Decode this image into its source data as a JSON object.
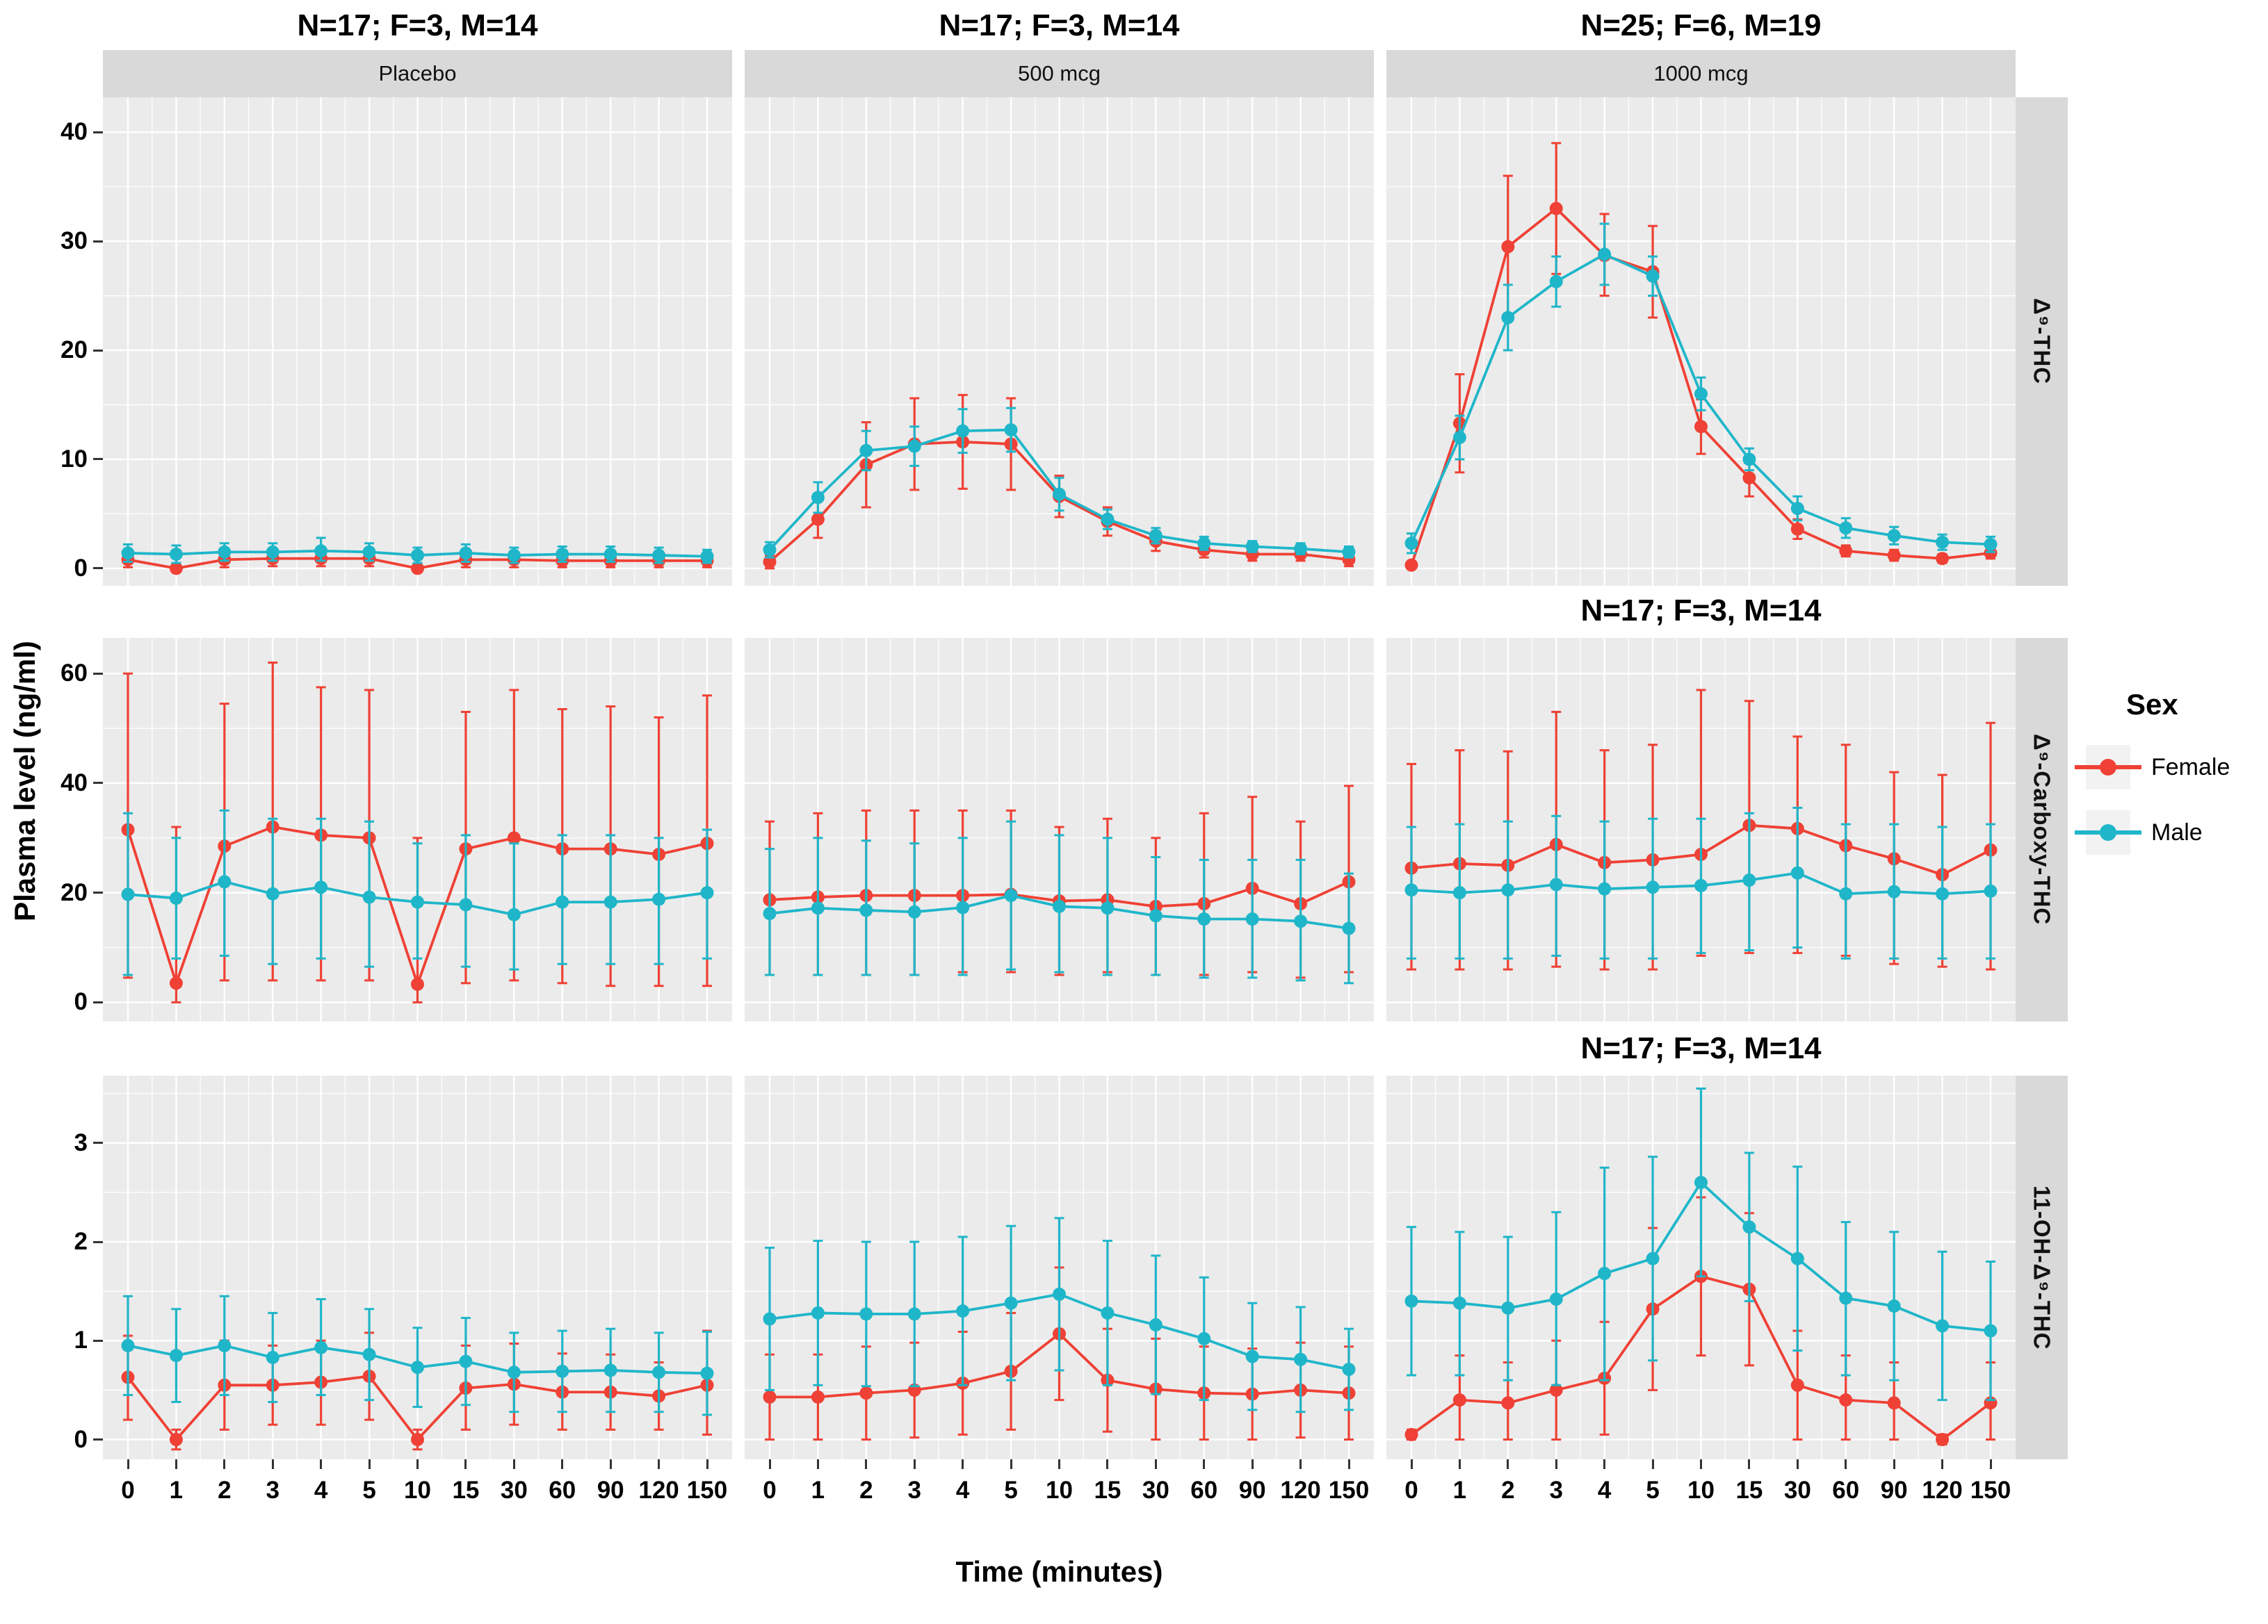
{
  "figure": {
    "x_axis_title": "Time (minutes)",
    "y_axis_title": "Plasma level (ng/ml)",
    "panel_bg": "#EBEBEB",
    "grid_color": "#FFFFFF",
    "strip_bg": "#D9D9D9"
  },
  "chart_data": {
    "type": "line",
    "x_categories": [
      "0",
      "1",
      "2",
      "3",
      "4",
      "5",
      "10",
      "15",
      "30",
      "60",
      "90",
      "120",
      "150"
    ],
    "x_values": [
      0,
      1,
      2,
      3,
      4,
      5,
      10,
      15,
      30,
      60,
      90,
      120,
      150
    ],
    "xlabel": "Time (minutes)",
    "ylabel": "Plasma level (ng/ml)",
    "grid": "white major and minor gridlines on gray panels",
    "legend": {
      "title": "Sex",
      "position": "right",
      "entries": [
        {
          "label": "Female",
          "color": "#EF4135"
        },
        {
          "label": "Male",
          "color": "#1FB6C9"
        }
      ]
    },
    "columns": [
      {
        "id": "placebo",
        "title": "N=17; F=3, M=14",
        "strip": "Placebo"
      },
      {
        "id": "500mcg",
        "title": "N=17; F=3, M=14",
        "strip": "500 mcg"
      },
      {
        "id": "1000mcg",
        "title": "N=25; F=6, M=19",
        "strip": "1000 mcg"
      }
    ],
    "rows": [
      {
        "id": "d9-thc",
        "strip": "Δ⁹-THC",
        "yticks": [
          0,
          10,
          20,
          30,
          40
        ],
        "minor": [
          5,
          15,
          25,
          35
        ],
        "ylim": [
          -1.6,
          43.2
        ]
      },
      {
        "id": "d9-carboxy-thc",
        "strip": "Δ⁹-Carboxy-THC",
        "yticks": [
          0,
          20,
          40,
          60
        ],
        "minor": [
          10,
          30,
          50
        ],
        "ylim": [
          -3.5,
          66.5
        ]
      },
      {
        "id": "11-oh-d9-thc",
        "strip": "11-OH-Δ⁹-THC",
        "yticks": [
          0,
          1,
          2,
          3
        ],
        "minor": [
          0.5,
          1.5,
          2.5,
          3.5
        ],
        "ylim": [
          -0.2,
          3.68
        ]
      }
    ],
    "mid_titles": [
      {
        "above_row": 1,
        "col": 2,
        "text": "N=17; F=3, M=14"
      },
      {
        "above_row": 2,
        "col": 2,
        "text": "N=17; F=3, M=14"
      }
    ],
    "panels": [
      {
        "name": "placebo-d9-thc",
        "row": 0,
        "col": 0,
        "series": {
          "female": {
            "values": [
              0.8,
              0.0,
              0.8,
              0.9,
              0.9,
              0.9,
              0.0,
              0.8,
              0.8,
              0.7,
              0.7,
              0.7,
              0.7
            ],
            "lo": [
              0.1,
              -0.2,
              0.1,
              0.2,
              0.2,
              0.2,
              -0.2,
              0.1,
              0.1,
              0.1,
              0.1,
              0.1,
              0.1
            ],
            "hi": [
              1.5,
              0.2,
              1.5,
              1.6,
              1.6,
              1.6,
              0.2,
              1.5,
              1.5,
              1.3,
              1.3,
              1.3,
              1.3
            ]
          },
          "male": {
            "values": [
              1.4,
              1.3,
              1.5,
              1.5,
              1.6,
              1.5,
              1.2,
              1.4,
              1.2,
              1.3,
              1.3,
              1.2,
              1.1
            ],
            "lo": [
              0.6,
              0.5,
              0.7,
              0.7,
              0.7,
              0.7,
              0.5,
              0.6,
              0.5,
              0.6,
              0.6,
              0.5,
              0.5
            ],
            "hi": [
              2.2,
              2.1,
              2.3,
              2.3,
              2.8,
              2.3,
              1.9,
              2.2,
              1.9,
              2.0,
              2.0,
              1.9,
              1.7
            ]
          }
        }
      },
      {
        "name": "500mcg-d9-thc",
        "row": 0,
        "col": 1,
        "series": {
          "female": {
            "values": [
              0.6,
              4.5,
              9.5,
              11.4,
              11.6,
              11.4,
              6.6,
              4.3,
              2.5,
              1.7,
              1.3,
              1.3,
              0.8
            ],
            "lo": [
              0.0,
              2.8,
              5.6,
              7.2,
              7.3,
              7.2,
              4.7,
              3.0,
              1.6,
              1.0,
              0.7,
              0.7,
              0.2
            ],
            "hi": [
              1.2,
              6.2,
              13.4,
              15.6,
              15.9,
              15.6,
              8.5,
              5.6,
              3.4,
              2.4,
              1.9,
              1.9,
              1.4
            ]
          },
          "male": {
            "values": [
              1.7,
              6.5,
              10.8,
              11.2,
              12.6,
              12.7,
              6.8,
              4.5,
              3.0,
              2.3,
              2.0,
              1.8,
              1.5
            ],
            "lo": [
              1.0,
              5.1,
              9.0,
              9.4,
              10.6,
              10.7,
              5.3,
              3.6,
              2.3,
              1.7,
              1.5,
              1.3,
              1.0
            ],
            "hi": [
              2.4,
              7.9,
              12.6,
              13.0,
              14.6,
              14.7,
              8.3,
              5.4,
              3.7,
              2.9,
              2.5,
              2.3,
              2.0
            ]
          }
        }
      },
      {
        "name": "1000mcg-d9-thc",
        "row": 0,
        "col": 2,
        "series": {
          "female": {
            "values": [
              0.3,
              13.3,
              29.5,
              33.0,
              28.7,
              27.2,
              13.0,
              8.3,
              3.6,
              1.6,
              1.2,
              0.9,
              1.4
            ],
            "lo": [
              0.0,
              8.8,
              23.0,
              27.0,
              25.0,
              23.0,
              10.5,
              6.6,
              2.7,
              1.1,
              0.7,
              0.5,
              0.9
            ],
            "hi": [
              0.6,
              17.8,
              36.0,
              39.0,
              32.5,
              31.4,
              15.5,
              10.0,
              4.5,
              2.1,
              1.7,
              1.3,
              1.9
            ]
          },
          "male": {
            "values": [
              2.3,
              12.0,
              23.0,
              26.3,
              28.8,
              26.8,
              16.0,
              10.0,
              5.5,
              3.7,
              3.0,
              2.4,
              2.2
            ],
            "lo": [
              1.4,
              10.0,
              20.0,
              24.0,
              26.0,
              25.0,
              14.5,
              9.0,
              4.4,
              2.8,
              2.2,
              1.7,
              1.5
            ],
            "hi": [
              3.2,
              14.0,
              26.0,
              28.6,
              31.6,
              28.6,
              17.5,
              11.0,
              6.6,
              4.6,
              3.8,
              3.1,
              2.9
            ]
          }
        }
      },
      {
        "name": "placebo-d9-carboxy-thc",
        "row": 1,
        "col": 0,
        "series": {
          "female": {
            "values": [
              31.5,
              3.5,
              28.5,
              32.0,
              30.5,
              30.0,
              3.3,
              28.0,
              30.0,
              28.0,
              28.0,
              27.0,
              29.0
            ],
            "lo": [
              4.5,
              0.0,
              4.0,
              4.0,
              4.0,
              4.0,
              0.0,
              3.5,
              4.0,
              3.5,
              3.0,
              3.0,
              3.0
            ],
            "hi": [
              60.0,
              32.0,
              54.5,
              62.0,
              57.5,
              57.0,
              30.0,
              53.0,
              57.0,
              53.5,
              54.0,
              52.0,
              56.0
            ]
          },
          "male": {
            "values": [
              19.7,
              19.0,
              22.0,
              19.8,
              21.0,
              19.2,
              18.3,
              17.8,
              16.0,
              18.3,
              18.3,
              18.8,
              20.0
            ],
            "lo": [
              5.0,
              8.0,
              8.5,
              7.0,
              8.0,
              6.5,
              8.0,
              6.5,
              6.0,
              7.0,
              7.0,
              7.0,
              8.0
            ],
            "hi": [
              34.5,
              30.0,
              35.0,
              33.5,
              33.5,
              33.0,
              29.0,
              30.5,
              29.0,
              30.5,
              30.5,
              30.0,
              31.5
            ]
          }
        }
      },
      {
        "name": "500mcg-d9-carboxy-thc",
        "row": 1,
        "col": 1,
        "series": {
          "female": {
            "values": [
              18.7,
              19.2,
              19.5,
              19.5,
              19.5,
              19.7,
              18.5,
              18.7,
              17.5,
              18.0,
              20.8,
              18.0,
              22.0
            ],
            "lo": [
              5.0,
              5.0,
              5.0,
              5.0,
              5.5,
              5.5,
              5.0,
              5.5,
              5.0,
              5.0,
              5.5,
              4.5,
              5.5
            ],
            "hi": [
              33.0,
              34.5,
              35.0,
              35.0,
              35.0,
              35.0,
              32.0,
              33.5,
              30.0,
              34.5,
              37.5,
              33.0,
              39.5
            ]
          },
          "male": {
            "values": [
              16.2,
              17.2,
              16.8,
              16.5,
              17.3,
              19.5,
              17.5,
              17.2,
              15.8,
              15.2,
              15.2,
              14.8,
              13.5
            ],
            "lo": [
              5.0,
              5.0,
              5.0,
              5.0,
              5.0,
              6.0,
              5.5,
              5.0,
              5.0,
              4.5,
              4.5,
              4.0,
              3.5
            ],
            "hi": [
              28.0,
              30.0,
              29.5,
              29.0,
              30.0,
              33.0,
              30.5,
              30.0,
              26.5,
              26.0,
              26.0,
              26.0,
              23.5
            ]
          }
        }
      },
      {
        "name": "1000mcg-d9-carboxy-thc",
        "row": 1,
        "col": 2,
        "series": {
          "female": {
            "values": [
              24.5,
              25.3,
              25.0,
              28.8,
              25.5,
              26.0,
              27.0,
              32.3,
              31.7,
              28.6,
              26.2,
              23.3,
              27.8
            ],
            "lo": [
              6.0,
              6.0,
              6.0,
              6.5,
              6.0,
              6.0,
              8.5,
              9.0,
              9.0,
              8.5,
              7.0,
              6.5,
              6.0
            ],
            "hi": [
              43.5,
              46.0,
              45.8,
              53.0,
              46.0,
              47.0,
              57.0,
              55.0,
              48.5,
              47.0,
              42.0,
              41.5,
              51.0
            ]
          },
          "male": {
            "values": [
              20.5,
              20.0,
              20.5,
              21.5,
              20.7,
              21.0,
              21.3,
              22.3,
              23.6,
              19.8,
              20.2,
              19.8,
              20.3
            ],
            "lo": [
              8.0,
              8.0,
              8.0,
              8.5,
              8.0,
              8.0,
              9.0,
              9.5,
              10.0,
              8.0,
              8.0,
              8.0,
              8.0
            ],
            "hi": [
              32.0,
              32.5,
              33.0,
              34.0,
              33.0,
              33.5,
              33.5,
              34.5,
              35.5,
              32.5,
              32.5,
              32.0,
              32.5
            ]
          }
        }
      },
      {
        "name": "placebo-11-oh-d9-thc",
        "row": 2,
        "col": 0,
        "series": {
          "female": {
            "values": [
              0.63,
              0.0,
              0.55,
              0.55,
              0.58,
              0.64,
              0.0,
              0.52,
              0.56,
              0.48,
              0.48,
              0.44,
              0.55
            ],
            "lo": [
              0.2,
              -0.1,
              0.1,
              0.15,
              0.15,
              0.2,
              -0.1,
              0.1,
              0.15,
              0.1,
              0.1,
              0.1,
              0.05
            ],
            "hi": [
              1.05,
              0.1,
              1.0,
              0.95,
              1.0,
              1.08,
              0.1,
              0.95,
              0.97,
              0.87,
              0.86,
              0.78,
              1.1
            ]
          },
          "male": {
            "values": [
              0.95,
              0.85,
              0.95,
              0.83,
              0.93,
              0.86,
              0.73,
              0.79,
              0.68,
              0.69,
              0.7,
              0.68,
              0.67
            ],
            "lo": [
              0.45,
              0.38,
              0.45,
              0.38,
              0.45,
              0.4,
              0.33,
              0.35,
              0.28,
              0.28,
              0.28,
              0.28,
              0.25
            ],
            "hi": [
              1.45,
              1.32,
              1.45,
              1.28,
              1.42,
              1.32,
              1.13,
              1.23,
              1.08,
              1.1,
              1.12,
              1.08,
              1.09
            ]
          }
        }
      },
      {
        "name": "500mcg-11-oh-d9-thc",
        "row": 2,
        "col": 1,
        "series": {
          "female": {
            "values": [
              0.43,
              0.43,
              0.47,
              0.5,
              0.57,
              0.69,
              1.07,
              0.6,
              0.51,
              0.47,
              0.46,
              0.5,
              0.47
            ],
            "lo": [
              0.0,
              0.0,
              0.0,
              0.02,
              0.05,
              0.1,
              0.4,
              0.08,
              0.0,
              0.0,
              0.0,
              0.02,
              0.0
            ],
            "hi": [
              0.86,
              0.86,
              0.94,
              0.98,
              1.09,
              1.28,
              1.74,
              1.12,
              1.02,
              0.94,
              0.92,
              0.98,
              0.94
            ]
          },
          "male": {
            "values": [
              1.22,
              1.28,
              1.27,
              1.27,
              1.3,
              1.38,
              1.47,
              1.28,
              1.16,
              1.02,
              0.84,
              0.81,
              0.71
            ],
            "lo": [
              0.5,
              0.55,
              0.54,
              0.54,
              0.55,
              0.6,
              0.7,
              0.55,
              0.46,
              0.4,
              0.3,
              0.28,
              0.3
            ],
            "hi": [
              1.94,
              2.01,
              2.0,
              2.0,
              2.05,
              2.16,
              2.24,
              2.01,
              1.86,
              1.64,
              1.38,
              1.34,
              1.12
            ]
          }
        }
      },
      {
        "name": "1000mcg-11-oh-d9-thc",
        "row": 2,
        "col": 2,
        "series": {
          "female": {
            "values": [
              0.05,
              0.4,
              0.37,
              0.5,
              0.62,
              1.32,
              1.65,
              1.52,
              0.55,
              0.4,
              0.37,
              0.0,
              0.37
            ],
            "lo": [
              0.0,
              0.0,
              0.0,
              0.0,
              0.05,
              0.5,
              0.85,
              0.75,
              0.0,
              0.0,
              0.0,
              -0.05,
              0.0
            ],
            "hi": [
              0.1,
              0.85,
              0.78,
              1.0,
              1.19,
              2.14,
              2.45,
              2.29,
              1.1,
              0.85,
              0.78,
              0.05,
              0.78
            ]
          },
          "male": {
            "values": [
              1.4,
              1.38,
              1.33,
              1.42,
              1.68,
              1.83,
              2.6,
              2.15,
              1.83,
              1.43,
              1.35,
              1.15,
              1.1
            ],
            "lo": [
              0.65,
              0.65,
              0.6,
              0.55,
              0.6,
              0.8,
              1.65,
              1.4,
              0.9,
              0.65,
              0.6,
              0.4,
              0.4
            ],
            "hi": [
              2.15,
              2.1,
              2.05,
              2.3,
              2.75,
              2.86,
              3.55,
              2.9,
              2.76,
              2.2,
              2.1,
              1.9,
              1.8
            ]
          }
        }
      }
    ]
  }
}
